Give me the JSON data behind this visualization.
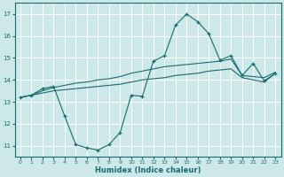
{
  "xlabel": "Humidex (Indice chaleur)",
  "bg_color": "#cce8e8",
  "grid_color": "#b8d8d8",
  "line_color": "#1a6b6b",
  "xlim": [
    -0.5,
    23.5
  ],
  "ylim": [
    10.5,
    17.5
  ],
  "yticks": [
    11,
    12,
    13,
    14,
    15,
    16,
    17
  ],
  "xticks": [
    0,
    1,
    2,
    3,
    4,
    5,
    6,
    7,
    8,
    9,
    10,
    11,
    12,
    13,
    14,
    15,
    16,
    17,
    18,
    19,
    20,
    21,
    22,
    23
  ],
  "line1_x": [
    0,
    1,
    2,
    3,
    4,
    5,
    6,
    7,
    8,
    9,
    10,
    11,
    12,
    13,
    14,
    15,
    16,
    17,
    18,
    19,
    20,
    21,
    22,
    23
  ],
  "line1_y": [
    13.2,
    13.3,
    13.6,
    13.7,
    12.35,
    11.05,
    10.9,
    10.8,
    11.05,
    11.6,
    13.3,
    13.25,
    14.85,
    15.1,
    16.5,
    17.0,
    16.65,
    16.1,
    14.9,
    15.1,
    14.2,
    14.75,
    13.95,
    14.3
  ],
  "line2_x": [
    0,
    1,
    2,
    3,
    4,
    5,
    6,
    7,
    8,
    9,
    10,
    11,
    12,
    13,
    14,
    15,
    16,
    17,
    18,
    19,
    20,
    21,
    22,
    23
  ],
  "line2_y": [
    13.2,
    13.3,
    13.4,
    13.5,
    13.55,
    13.6,
    13.65,
    13.7,
    13.75,
    13.8,
    13.9,
    14.0,
    14.05,
    14.1,
    14.2,
    14.25,
    14.3,
    14.4,
    14.45,
    14.5,
    14.1,
    14.0,
    13.9,
    14.3
  ],
  "line3_x": [
    0,
    1,
    2,
    3,
    4,
    5,
    6,
    7,
    8,
    9,
    10,
    11,
    12,
    13,
    14,
    15,
    16,
    17,
    18,
    19,
    20,
    21,
    22,
    23
  ],
  "line3_y": [
    13.2,
    13.3,
    13.5,
    13.65,
    13.75,
    13.85,
    13.9,
    14.0,
    14.05,
    14.15,
    14.3,
    14.4,
    14.5,
    14.6,
    14.65,
    14.7,
    14.75,
    14.8,
    14.85,
    14.95,
    14.2,
    14.15,
    14.1,
    14.35
  ]
}
